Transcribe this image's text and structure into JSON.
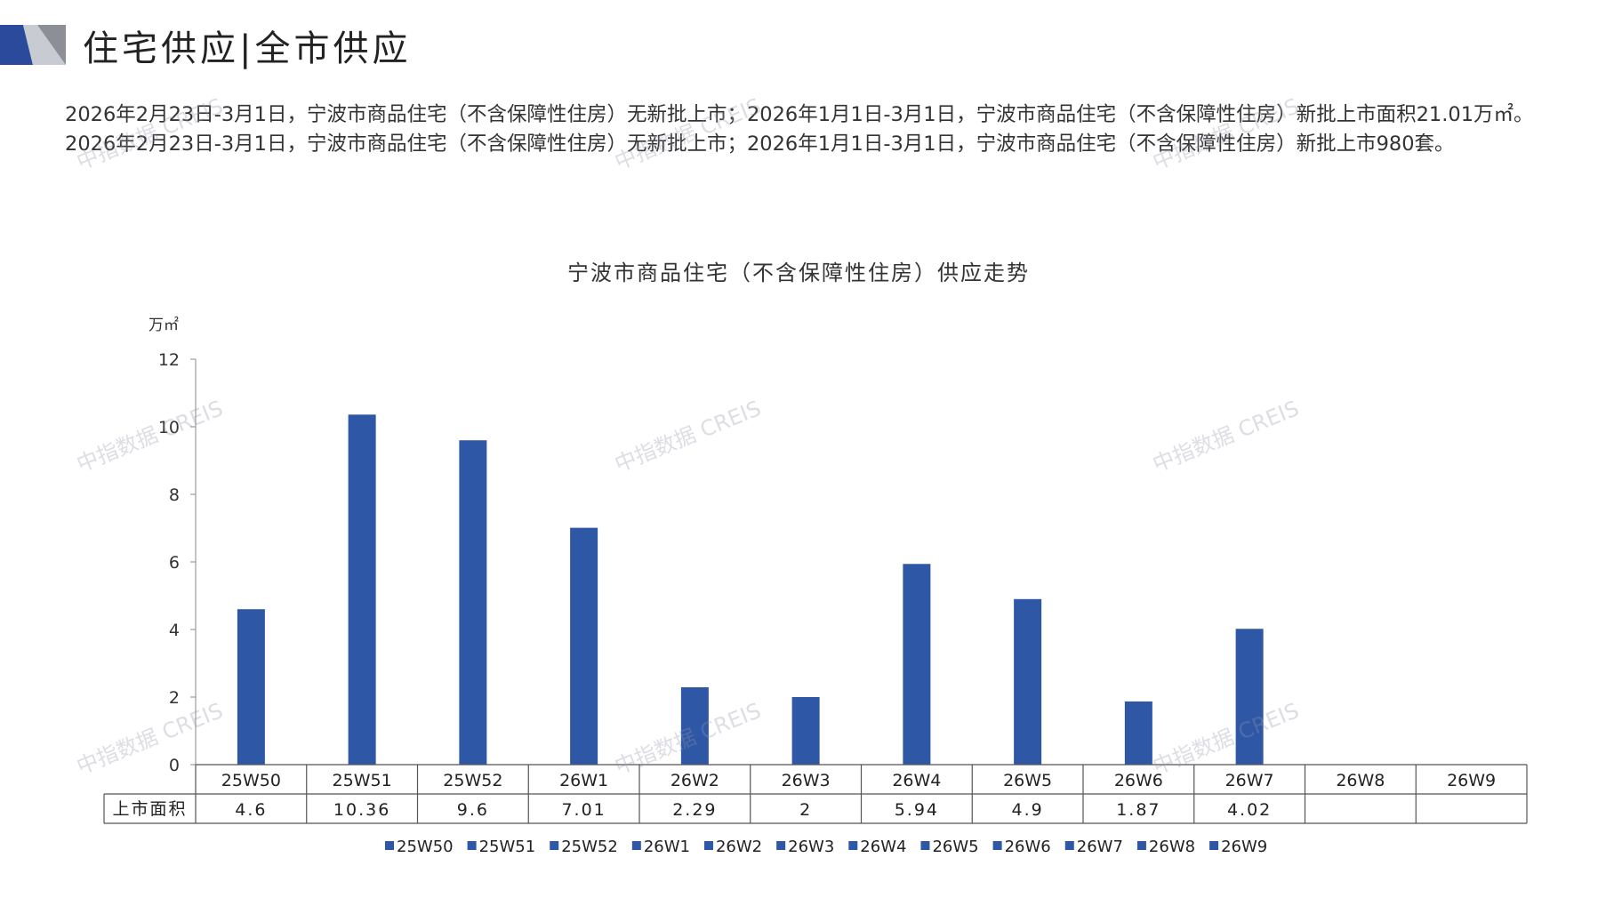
{
  "header": {
    "title": "住宅供应|全市供应",
    "summary": "2026年2月23日-3月1日，宁波市商品住宅（不含保障性住房）无新批上市；2026年1月1日-3月1日，宁波市商品住宅（不含保障性住房）新批上市面积21.01万㎡。2026年2月23日-3月1日，宁波市商品住宅（不含保障性住房）无新批上市；2026年1月1日-3月1日，宁波市商品住宅（不含保障性住房）新批上市980套。"
  },
  "colors": {
    "bar": "#2e58a6",
    "accent_dark": "#2b4a9c",
    "accent_gray": "#c9cbd3"
  },
  "watermark": "中指数据 CREIS",
  "chart_data": {
    "type": "bar",
    "title": "宁波市商品住宅（不含保障性住房）供应走势",
    "ylabel": "万㎡",
    "ylim": [
      0,
      12
    ],
    "yticks": [
      0,
      2,
      4,
      6,
      8,
      10,
      12
    ],
    "categories": [
      "25W50",
      "25W51",
      "25W52",
      "26W1",
      "26W2",
      "26W3",
      "26W4",
      "26W5",
      "26W6",
      "26W7",
      "26W8",
      "26W9"
    ],
    "series": [
      {
        "name": "上市面积",
        "values": [
          4.6,
          10.36,
          9.6,
          7.01,
          2.29,
          2,
          5.94,
          4.9,
          1.87,
          4.02,
          null,
          null
        ]
      }
    ],
    "table_labels": [
      "4.6",
      "10.36",
      "9.6",
      "7.01",
      "2.29",
      "2",
      "5.94",
      "4.9",
      "1.87",
      "4.02",
      "",
      ""
    ],
    "legend": {
      "position": "bottom",
      "entries": [
        "25W50",
        "25W51",
        "25W52",
        "26W1",
        "26W2",
        "26W3",
        "26W4",
        "26W5",
        "26W6",
        "26W7",
        "26W8",
        "26W9"
      ]
    },
    "data_table": true,
    "grid": false
  }
}
